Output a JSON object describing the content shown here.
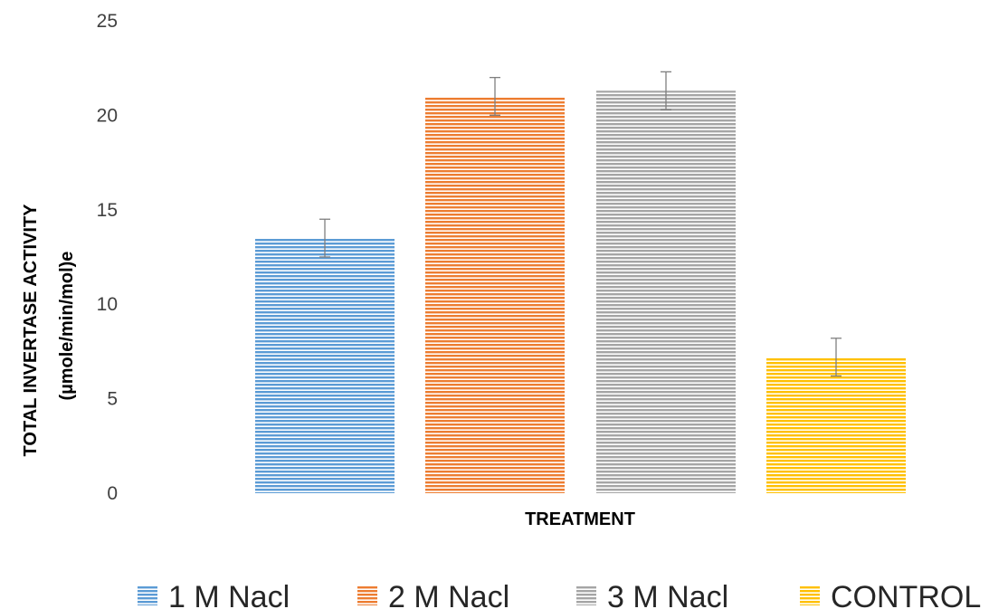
{
  "chart_data": {
    "type": "bar",
    "title": "",
    "xlabel": "TREATMENT",
    "ylabel_line1": "TOTAL INVERTASE ACTIVITY",
    "ylabel_line2": "(µmole/min/mol)e",
    "ylim": [
      0,
      25
    ],
    "yticks": [
      "0",
      "5",
      "10",
      "15",
      "20",
      "25"
    ],
    "ytick_values": [
      0,
      5,
      10,
      15,
      20,
      25
    ],
    "grid": false,
    "legend_position": "bottom",
    "series": [
      {
        "name": "1 M Nacl",
        "value": 13.5,
        "error": 1.0,
        "color": "#5B9BD5"
      },
      {
        "name": "2 M Nacl",
        "value": 21.0,
        "error": 1.0,
        "color": "#ED7D31"
      },
      {
        "name": "3 M Nacl",
        "value": 21.3,
        "error": 1.0,
        "color": "#A5A5A5"
      },
      {
        "name": "CONTROL",
        "value": 7.2,
        "error": 1.0,
        "color": "#FFC000"
      }
    ]
  }
}
